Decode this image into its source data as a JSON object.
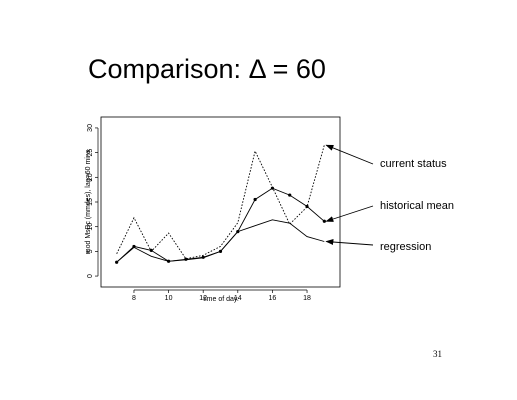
{
  "slide": {
    "title": "Comparison:  Δ = 60",
    "page_number": "31"
  },
  "chart_data": {
    "type": "line",
    "title": "",
    "xlabel": "time of day.",
    "ylabel": "mod MsBc (mmdes), lag=60 mins",
    "xlim": [
      6.5,
      19.5
    ],
    "ylim": [
      -1,
      31
    ],
    "xticks": [
      8,
      10,
      12,
      14,
      16,
      18
    ],
    "yticks": [
      0,
      5,
      10,
      15,
      20,
      25,
      30
    ],
    "grid": false,
    "legend": "none",
    "series": [
      {
        "key": "current",
        "x": [
          7,
          8,
          9,
          10,
          11,
          12,
          13,
          14,
          15,
          16,
          17,
          18,
          19
        ],
        "values": [
          4.5,
          11.8,
          5.0,
          8.7,
          3.5,
          4.2,
          6.0,
          10.8,
          25.3,
          18.0,
          10.5,
          14.0,
          26.5
        ],
        "style": "dotted"
      },
      {
        "key": "historical",
        "x": [
          7,
          8,
          9,
          10,
          11,
          12,
          13,
          14,
          15,
          16,
          17,
          18,
          19
        ],
        "values": [
          2.8,
          6.0,
          5.2,
          3.0,
          3.4,
          3.8,
          5.0,
          9.0,
          15.5,
          17.8,
          16.4,
          14.1,
          11.1
        ],
        "style": "solid-dots"
      },
      {
        "key": "regression",
        "x": [
          7,
          8,
          9,
          10,
          11,
          12,
          13,
          14,
          15,
          16,
          17,
          18,
          19
        ],
        "values": [
          2.8,
          5.8,
          4.0,
          3.0,
          3.3,
          3.7,
          5.0,
          9.0,
          10.2,
          11.4,
          10.7,
          8.0,
          7.0
        ],
        "style": "solid"
      }
    ],
    "annotations": [
      {
        "key": "current",
        "text": "current status"
      },
      {
        "key": "historical",
        "text": "historical mean"
      },
      {
        "key": "regression",
        "text": "regression"
      }
    ]
  }
}
